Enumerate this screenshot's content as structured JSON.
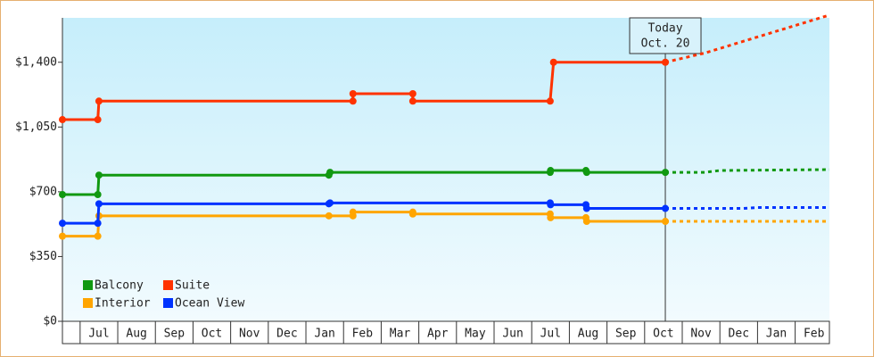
{
  "chart_data": {
    "type": "step-line",
    "categories": [
      "Jul",
      "Aug",
      "Sep",
      "Oct",
      "Nov",
      "Dec",
      "Jan",
      "Feb",
      "Mar",
      "Apr",
      "May",
      "Jun",
      "Jul",
      "Aug",
      "Sep",
      "Oct",
      "Nov",
      "Dec",
      "Jan",
      "Feb"
    ],
    "xlim": [
      -0.47,
      19.91
    ],
    "ylim": [
      0,
      1640
    ],
    "yticks": [
      {
        "value": 0,
        "label": "$0"
      },
      {
        "value": 350,
        "label": "$350"
      },
      {
        "value": 700,
        "label": "$700"
      },
      {
        "value": 1050,
        "label": "$1,050"
      },
      {
        "value": 1400,
        "label": "$1,400"
      }
    ],
    "today": {
      "x": 15.55,
      "label": [
        "Today",
        "Oct. 20"
      ]
    },
    "legend": "lower left",
    "series": [
      {
        "name": "Balcony",
        "color": "#119911",
        "x": [
          -0.47,
          0.47,
          0.5,
          6.61,
          6.64,
          12.49,
          12.5,
          13.44,
          13.46,
          15.55
        ],
        "values": [
          685,
          685,
          790,
          790,
          805,
          805,
          815,
          815,
          805,
          805
        ],
        "forecast": {
          "x": [
            15.55,
            16.6,
            17.0,
            19.91
          ],
          "values": [
            805,
            805,
            815,
            820
          ]
        }
      },
      {
        "name": "Suite",
        "color": "#ff3300",
        "x": [
          -0.47,
          0.47,
          0.5,
          7.25,
          7.25,
          8.84,
          8.84,
          12.49,
          12.58,
          15.55
        ],
        "values": [
          1090,
          1090,
          1190,
          1190,
          1230,
          1230,
          1190,
          1190,
          1400,
          1400
        ],
        "forecast": {
          "x": [
            15.55,
            16.6,
            19.91
          ],
          "values": [
            1400,
            1450,
            1655
          ]
        }
      },
      {
        "name": "Interior",
        "color": "#ffa500",
        "x": [
          -0.47,
          0.47,
          0.5,
          6.61,
          7.25,
          7.25,
          8.84,
          8.84,
          12.49,
          12.5,
          13.44,
          13.46,
          15.55
        ],
        "values": [
          460,
          460,
          570,
          570,
          570,
          590,
          590,
          580,
          580,
          560,
          560,
          540,
          540
        ],
        "forecast": {
          "x": [
            15.55,
            19.91
          ],
          "values": [
            540,
            540
          ]
        }
      },
      {
        "name": "Ocean View",
        "color": "#0033ff",
        "x": [
          -0.47,
          0.47,
          0.5,
          6.61,
          6.64,
          12.49,
          12.5,
          13.44,
          13.46,
          15.55
        ],
        "values": [
          530,
          530,
          635,
          635,
          640,
          640,
          630,
          630,
          610,
          610
        ],
        "forecast": {
          "x": [
            15.55,
            17.6,
            18.0,
            19.91
          ],
          "values": [
            610,
            610,
            615,
            615
          ]
        }
      }
    ]
  }
}
